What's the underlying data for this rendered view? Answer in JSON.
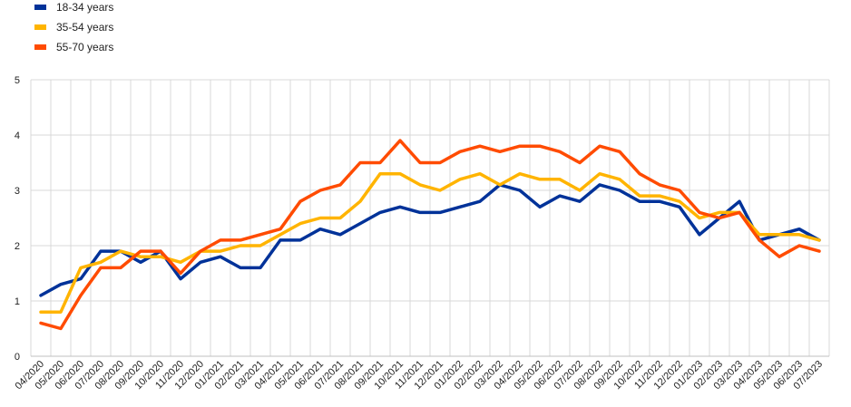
{
  "chart_data": {
    "type": "line",
    "title": "",
    "xlabel": "",
    "ylabel": "",
    "ylim": [
      0,
      5
    ],
    "yticks": [
      0,
      1,
      2,
      3,
      4,
      5
    ],
    "grid": "vertical and horizontal",
    "legend_position": "top-left",
    "categories": [
      "04/2020",
      "05/2020",
      "06/2020",
      "07/2020",
      "08/2020",
      "09/2020",
      "10/2020",
      "11/2020",
      "12/2020",
      "01/2021",
      "02/2021",
      "03/2021",
      "04/2021",
      "05/2021",
      "06/2021",
      "07/2021",
      "08/2021",
      "09/2021",
      "10/2021",
      "11/2021",
      "12/2021",
      "01/2022",
      "02/2022",
      "03/2022",
      "04/2022",
      "05/2022",
      "06/2022",
      "07/2022",
      "08/2022",
      "09/2022",
      "10/2022",
      "11/2022",
      "12/2022",
      "01/2023",
      "02/2023",
      "03/2023",
      "04/2023",
      "05/2023",
      "06/2023",
      "07/2023"
    ],
    "series": [
      {
        "name": "18-34 years",
        "color": "#003299",
        "values": [
          1.1,
          1.3,
          1.4,
          1.9,
          1.9,
          1.7,
          1.9,
          1.4,
          1.7,
          1.8,
          1.6,
          1.6,
          2.1,
          2.1,
          2.3,
          2.2,
          2.4,
          2.6,
          2.7,
          2.6,
          2.6,
          2.7,
          2.8,
          3.1,
          3.0,
          2.7,
          2.9,
          2.8,
          3.1,
          3.0,
          2.8,
          2.8,
          2.7,
          2.2,
          2.5,
          2.8,
          2.1,
          2.2,
          2.3,
          2.1
        ]
      },
      {
        "name": "35-54 years",
        "color": "#FFB400",
        "values": [
          0.8,
          0.8,
          1.6,
          1.7,
          1.9,
          1.8,
          1.8,
          1.7,
          1.9,
          1.9,
          2.0,
          2.0,
          2.2,
          2.4,
          2.5,
          2.5,
          2.8,
          3.3,
          3.3,
          3.1,
          3.0,
          3.2,
          3.3,
          3.1,
          3.3,
          3.2,
          3.2,
          3.0,
          3.3,
          3.2,
          2.9,
          2.9,
          2.8,
          2.5,
          2.6,
          2.6,
          2.2,
          2.2,
          2.2,
          2.1
        ]
      },
      {
        "name": "55-70 years",
        "color": "#FF4B00",
        "values": [
          0.6,
          0.5,
          1.1,
          1.6,
          1.6,
          1.9,
          1.9,
          1.5,
          1.9,
          2.1,
          2.1,
          2.2,
          2.3,
          2.8,
          3.0,
          3.1,
          3.5,
          3.5,
          3.9,
          3.5,
          3.5,
          3.7,
          3.8,
          3.7,
          3.8,
          3.8,
          3.7,
          3.5,
          3.8,
          3.7,
          3.3,
          3.1,
          3.0,
          2.6,
          2.5,
          2.6,
          2.1,
          1.8,
          2.0,
          1.9
        ]
      }
    ]
  }
}
